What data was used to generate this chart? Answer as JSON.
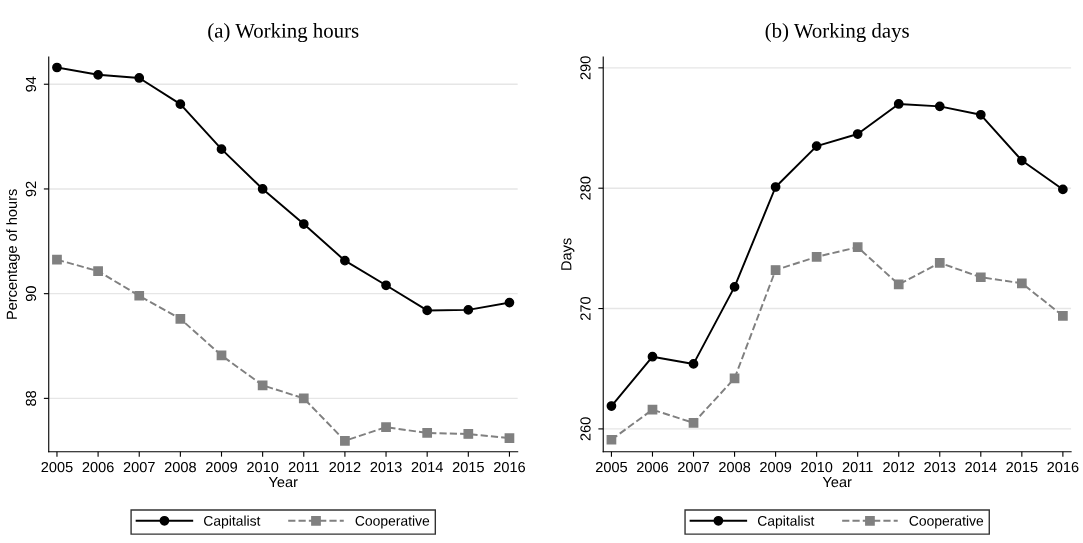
{
  "chart_data": [
    {
      "type": "line",
      "title": "(a) Working hours",
      "xlabel": "Year",
      "ylabel": "Percentage of hours",
      "x": [
        2005,
        2006,
        2007,
        2008,
        2009,
        2010,
        2011,
        2012,
        2013,
        2014,
        2015,
        2016
      ],
      "series": [
        {
          "name": "Capitalist",
          "color": "#000000",
          "marker": "circle",
          "line_style": "solid",
          "values": [
            94.32,
            94.18,
            94.12,
            93.62,
            92.76,
            92.0,
            91.33,
            90.63,
            90.16,
            89.68,
            89.69,
            89.83
          ]
        },
        {
          "name": "Cooperative",
          "color": "#808080",
          "marker": "square",
          "line_style": "dashed",
          "values": [
            90.65,
            90.43,
            89.96,
            89.52,
            88.82,
            88.25,
            88.0,
            87.19,
            87.45,
            87.34,
            87.32,
            87.24
          ]
        }
      ],
      "xlim": [
        2004.8,
        2016.2
      ],
      "xticks": [
        2005,
        2006,
        2007,
        2008,
        2009,
        2010,
        2011,
        2012,
        2013,
        2014,
        2015,
        2016
      ],
      "ylim": [
        86.98,
        94.52
      ],
      "yticks": [
        88,
        90,
        92,
        94
      ],
      "grid": "y",
      "legend": "bottom"
    },
    {
      "type": "line",
      "title": "(b) Working days",
      "xlabel": "Year",
      "ylabel": "Days",
      "x": [
        2005,
        2006,
        2007,
        2008,
        2009,
        2010,
        2011,
        2012,
        2013,
        2014,
        2015,
        2016
      ],
      "series": [
        {
          "name": "Capitalist",
          "color": "#000000",
          "marker": "circle",
          "line_style": "solid",
          "values": [
            261.9,
            266.0,
            265.4,
            271.8,
            280.1,
            283.5,
            284.5,
            287.0,
            286.8,
            286.1,
            282.3,
            279.9
          ]
        },
        {
          "name": "Cooperative",
          "color": "#808080",
          "marker": "square",
          "line_style": "dashed",
          "values": [
            259.1,
            261.6,
            260.5,
            264.2,
            273.2,
            274.3,
            275.1,
            272.0,
            273.8,
            272.6,
            272.1,
            269.4
          ]
        }
      ],
      "xlim": [
        2004.8,
        2016.2
      ],
      "xticks": [
        2005,
        2006,
        2007,
        2008,
        2009,
        2010,
        2011,
        2012,
        2013,
        2014,
        2015,
        2016
      ],
      "ylim": [
        258.1,
        290.9
      ],
      "yticks": [
        260,
        270,
        280,
        290
      ],
      "grid": "y",
      "legend": "bottom"
    }
  ]
}
